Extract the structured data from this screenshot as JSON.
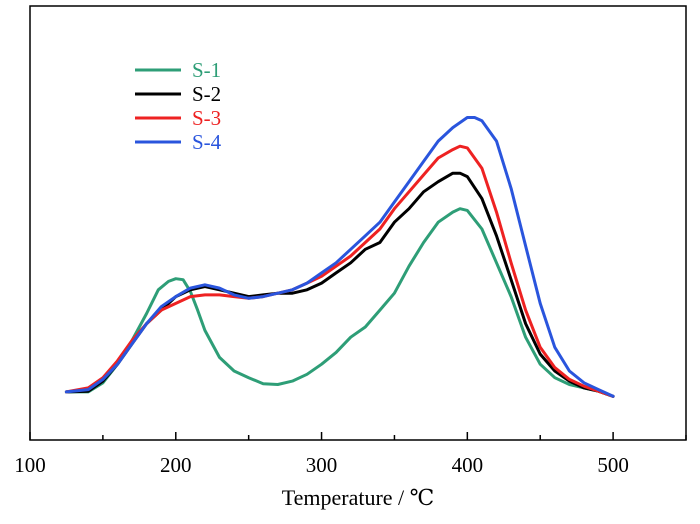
{
  "chart_data": {
    "type": "line",
    "title": "",
    "xlabel": "Temperature / ℃",
    "ylabel": "",
    "xlim": [
      100,
      550
    ],
    "ylim": [
      0,
      1
    ],
    "x_ticks": [
      100,
      200,
      300,
      400,
      500
    ],
    "y_ticks": [],
    "grid": false,
    "legend_position": "top-left",
    "colors": {
      "S-1": "#2e9e77",
      "S-2": "#000000",
      "S-3": "#ee2222",
      "S-4": "#2a55dd"
    },
    "series": [
      {
        "name": "S-1",
        "color": "#2e9e77",
        "x": [
          125,
          140,
          150,
          160,
          170,
          180,
          188,
          195,
          200,
          205,
          210,
          215,
          220,
          230,
          240,
          250,
          260,
          270,
          280,
          290,
          300,
          310,
          320,
          330,
          340,
          350,
          360,
          370,
          380,
          390,
          395,
          400,
          410,
          420,
          430,
          440,
          450,
          460,
          470,
          480,
          490,
          500
        ],
        "y": [
          0.018,
          0.018,
          0.045,
          0.1,
          0.17,
          0.25,
          0.32,
          0.345,
          0.353,
          0.35,
          0.315,
          0.26,
          0.2,
          0.12,
          0.08,
          0.06,
          0.042,
          0.04,
          0.05,
          0.07,
          0.1,
          0.135,
          0.18,
          0.21,
          0.26,
          0.31,
          0.39,
          0.46,
          0.52,
          0.55,
          0.56,
          0.555,
          0.5,
          0.4,
          0.3,
          0.18,
          0.1,
          0.06,
          0.04,
          0.03,
          0.02,
          0.005
        ]
      },
      {
        "name": "S-2",
        "color": "#000000",
        "x": [
          125,
          140,
          150,
          160,
          170,
          180,
          190,
          200,
          210,
          220,
          230,
          240,
          250,
          260,
          270,
          280,
          290,
          300,
          310,
          320,
          330,
          340,
          350,
          360,
          370,
          380,
          390,
          395,
          400,
          410,
          420,
          430,
          440,
          450,
          460,
          470,
          480,
          490,
          500
        ],
        "y": [
          0.018,
          0.02,
          0.05,
          0.1,
          0.16,
          0.22,
          0.26,
          0.3,
          0.32,
          0.33,
          0.32,
          0.31,
          0.3,
          0.305,
          0.31,
          0.31,
          0.32,
          0.34,
          0.37,
          0.4,
          0.44,
          0.46,
          0.52,
          0.56,
          0.61,
          0.64,
          0.665,
          0.665,
          0.655,
          0.59,
          0.48,
          0.35,
          0.22,
          0.13,
          0.08,
          0.05,
          0.03,
          0.02,
          0.005
        ]
      },
      {
        "name": "S-3",
        "color": "#ee2222",
        "x": [
          125,
          140,
          150,
          160,
          170,
          180,
          190,
          200,
          210,
          220,
          230,
          240,
          250,
          260,
          270,
          280,
          290,
          300,
          310,
          320,
          330,
          340,
          350,
          360,
          370,
          380,
          390,
          395,
          400,
          410,
          420,
          430,
          440,
          450,
          460,
          470,
          480,
          490,
          500
        ],
        "y": [
          0.018,
          0.03,
          0.06,
          0.11,
          0.17,
          0.22,
          0.26,
          0.28,
          0.3,
          0.305,
          0.305,
          0.3,
          0.295,
          0.3,
          0.31,
          0.32,
          0.34,
          0.36,
          0.39,
          0.42,
          0.46,
          0.5,
          0.56,
          0.61,
          0.66,
          0.71,
          0.735,
          0.745,
          0.74,
          0.68,
          0.55,
          0.4,
          0.26,
          0.15,
          0.09,
          0.055,
          0.035,
          0.02,
          0.005
        ]
      },
      {
        "name": "S-4",
        "color": "#2a55dd",
        "x": [
          125,
          140,
          150,
          160,
          170,
          180,
          190,
          200,
          210,
          220,
          230,
          240,
          250,
          260,
          270,
          280,
          290,
          300,
          310,
          320,
          330,
          340,
          350,
          360,
          370,
          380,
          390,
          400,
          405,
          410,
          420,
          430,
          440,
          450,
          460,
          470,
          480,
          490,
          500
        ],
        "y": [
          0.018,
          0.025,
          0.055,
          0.1,
          0.16,
          0.22,
          0.27,
          0.3,
          0.325,
          0.335,
          0.325,
          0.305,
          0.295,
          0.3,
          0.31,
          0.32,
          0.34,
          0.37,
          0.4,
          0.44,
          0.48,
          0.52,
          0.58,
          0.64,
          0.7,
          0.76,
          0.8,
          0.83,
          0.83,
          0.82,
          0.76,
          0.62,
          0.45,
          0.28,
          0.15,
          0.08,
          0.045,
          0.025,
          0.005
        ]
      }
    ]
  }
}
